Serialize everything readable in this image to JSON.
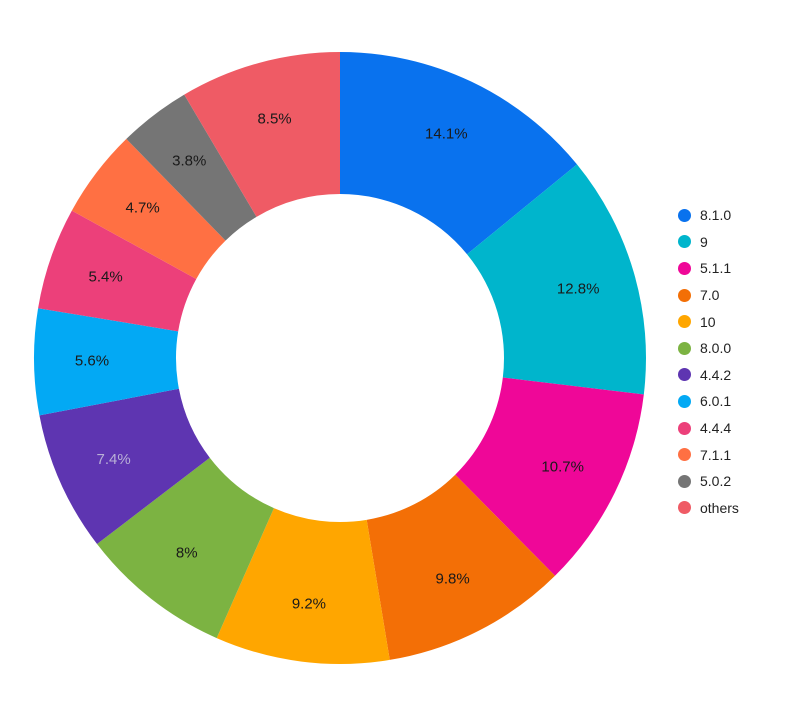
{
  "chart_data": {
    "type": "pie",
    "donut": true,
    "legend_position": "right",
    "slices": [
      {
        "label": "8.1.0",
        "value": 14.1,
        "display": "14.1%",
        "color": "#0972ee"
      },
      {
        "label": "9",
        "value": 12.8,
        "display": "12.8%",
        "color": "#00b5cc"
      },
      {
        "label": "5.1.1",
        "value": 10.7,
        "display": "10.7%",
        "color": "#ef0798"
      },
      {
        "label": "7.0",
        "value": 9.8,
        "display": "9.8%",
        "color": "#f36f06"
      },
      {
        "label": "10",
        "value": 9.2,
        "display": "9.2%",
        "color": "#ffa600"
      },
      {
        "label": "8.0.0",
        "value": 8.0,
        "display": "8%",
        "color": "#7cb342"
      },
      {
        "label": "4.4.2",
        "value": 7.4,
        "display": "7.4%",
        "color": "#5e35b1"
      },
      {
        "label": "6.0.1",
        "value": 5.6,
        "display": "5.6%",
        "color": "#03a9f4"
      },
      {
        "label": "4.4.4",
        "value": 5.4,
        "display": "5.4%",
        "color": "#ec407a"
      },
      {
        "label": "7.1.1",
        "value": 4.7,
        "display": "4.7%",
        "color": "#ff7043"
      },
      {
        "label": "5.0.2",
        "value": 3.8,
        "display": "3.8%",
        "color": "#757575"
      },
      {
        "label": "others",
        "value": 8.5,
        "display": "8.5%",
        "color": "#ef5b65"
      }
    ]
  }
}
